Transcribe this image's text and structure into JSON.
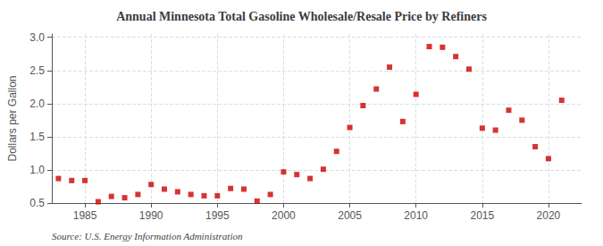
{
  "chart_data": {
    "type": "scatter",
    "title": "Annual Minnesota Total Gasoline Wholesale/Resale Price by Refiners",
    "ylabel": "Dollars per Gallon",
    "annotation": "Source: U.S. Energy Information Administration",
    "x": [
      1983,
      1984,
      1985,
      1986,
      1987,
      1988,
      1989,
      1990,
      1991,
      1992,
      1993,
      1994,
      1995,
      1996,
      1997,
      1998,
      1999,
      2000,
      2001,
      2002,
      2003,
      2004,
      2005,
      2006,
      2007,
      2008,
      2009,
      2010,
      2011,
      2012,
      2013,
      2014,
      2015,
      2016,
      2017,
      2018,
      2019,
      2020,
      2021
    ],
    "values": [
      0.87,
      0.84,
      0.84,
      0.52,
      0.6,
      0.58,
      0.63,
      0.78,
      0.71,
      0.67,
      0.63,
      0.61,
      0.61,
      0.72,
      0.71,
      0.53,
      0.63,
      0.97,
      0.93,
      0.87,
      1.01,
      1.28,
      1.64,
      1.97,
      2.22,
      2.55,
      1.73,
      2.14,
      2.86,
      2.85,
      2.71,
      2.52,
      1.63,
      1.6,
      1.9,
      1.75,
      1.35,
      1.17,
      2.05
    ],
    "color": "#cc0000",
    "marker": "square",
    "xlim": [
      1982.5,
      2022.5
    ],
    "xticks": [
      1985,
      1990,
      1995,
      2000,
      2005,
      2010,
      2015,
      2020
    ],
    "ylim": [
      0.5,
      3.05
    ],
    "yticks": [
      0.5,
      {
        "value": 1,
        "label": "1.0"
      },
      1.5,
      {
        "value": 2,
        "label": "2.0"
      },
      2.5,
      {
        "value": 3,
        "label": "3.0"
      }
    ],
    "grid": true
  }
}
